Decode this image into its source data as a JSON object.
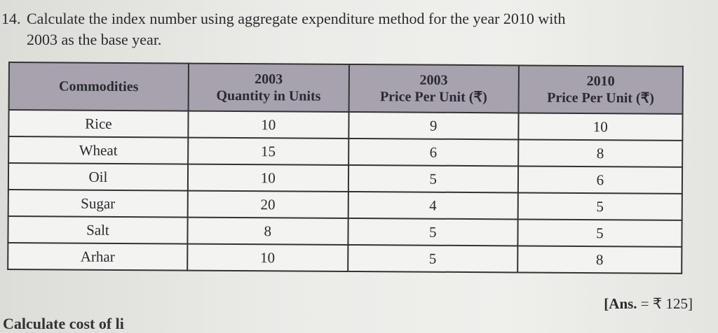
{
  "question": {
    "number": "14.",
    "line1": "Calculate the index number using aggregate expenditure method for the year 2010 with",
    "line2": "2003 as the base year."
  },
  "table": {
    "headers": [
      {
        "line1": "Commodities",
        "line2": ""
      },
      {
        "line1": "2003",
        "line2": "Quantity in Units"
      },
      {
        "line1": "2003",
        "line2": "Price Per Unit (₹)"
      },
      {
        "line1": "2010",
        "line2": "Price Per Unit (₹)"
      }
    ],
    "rows": [
      [
        "Rice",
        "10",
        "9",
        "10"
      ],
      [
        "Wheat",
        "15",
        "6",
        "8"
      ],
      [
        "Oil",
        "10",
        "5",
        "6"
      ],
      [
        "Sugar",
        "20",
        "4",
        "5"
      ],
      [
        "Salt",
        "8",
        "5",
        "5"
      ],
      [
        "Arhar",
        "10",
        "5",
        "8"
      ]
    ]
  },
  "answer": {
    "label": "[Ans.",
    "value": "= ₹ 125]"
  },
  "next_question_partial": "Calculate cost of li"
}
